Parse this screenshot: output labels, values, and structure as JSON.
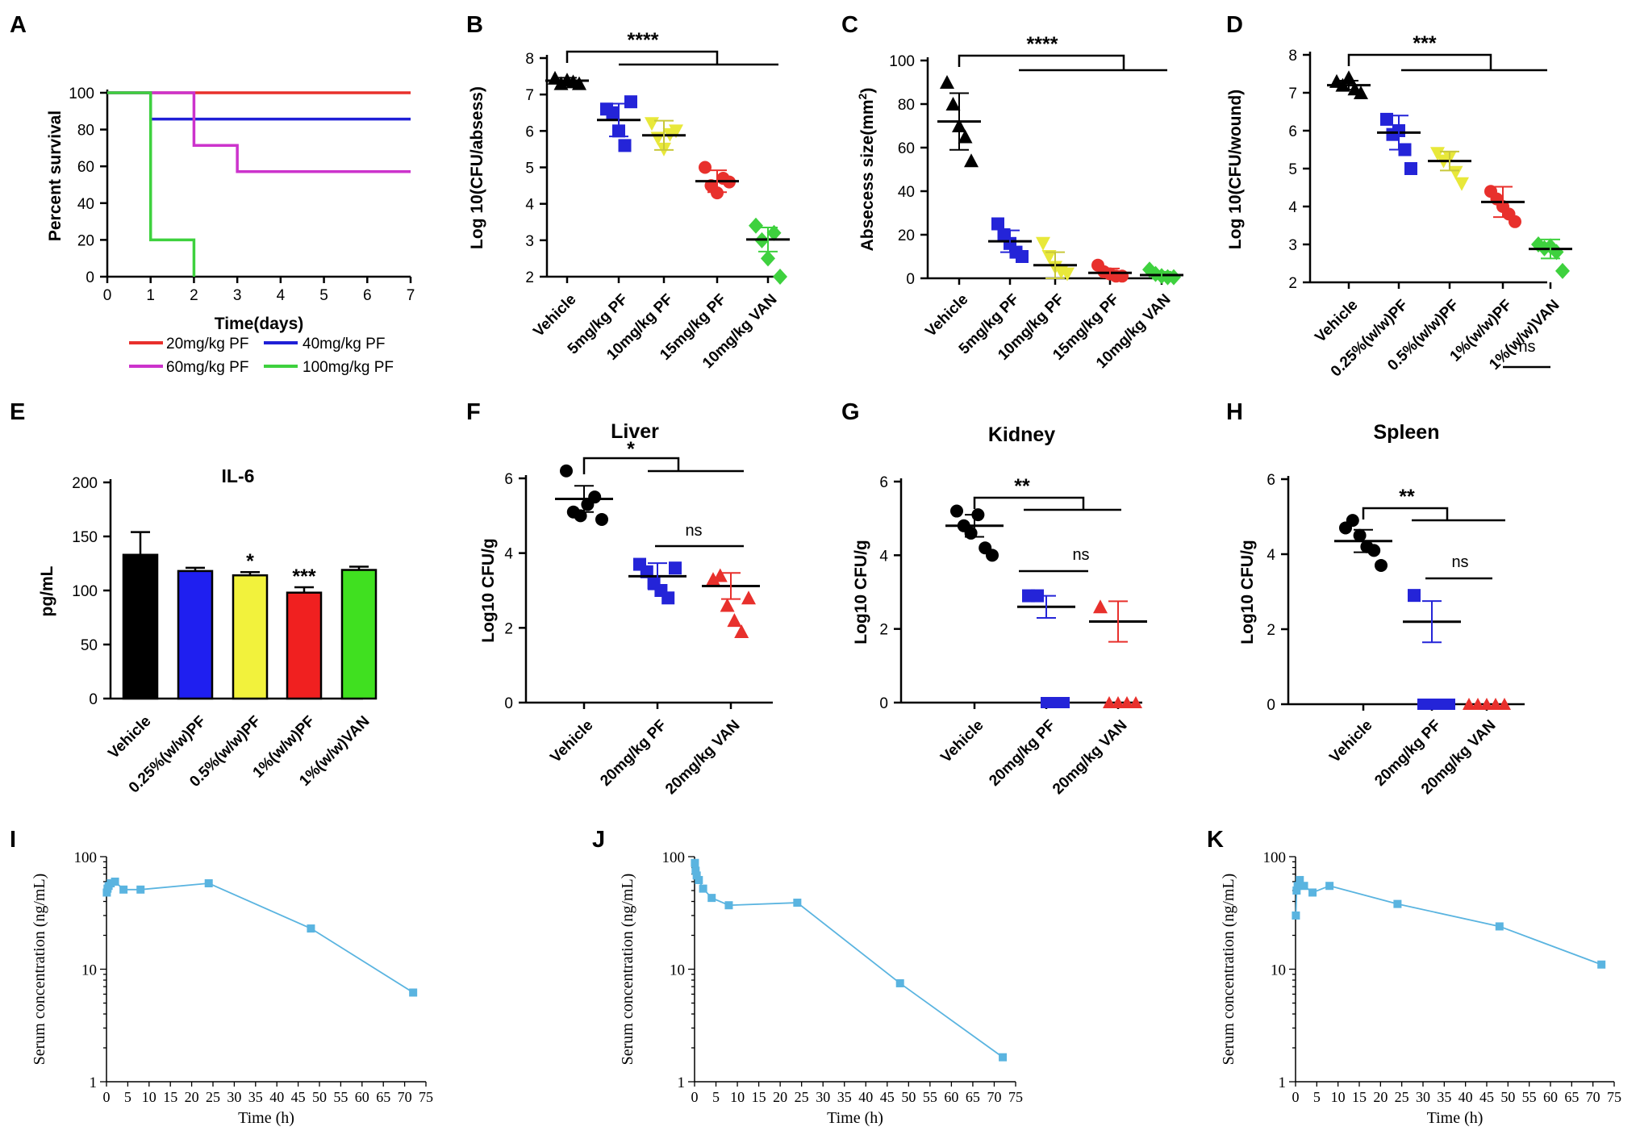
{
  "chart_data": [
    {
      "panel": "A",
      "type": "line",
      "xlabel": "Time(days)",
      "ylabel": "Percent survival",
      "xticks": [
        0,
        1,
        2,
        3,
        4,
        5,
        6,
        7
      ],
      "yticks": [
        0,
        20,
        40,
        60,
        80,
        100
      ],
      "xlim": [
        0,
        7
      ],
      "ylim": [
        0,
        100
      ],
      "series": [
        {
          "name": "20mg/kg PF",
          "color": "#e8302c",
          "steps": [
            [
              0,
              100
            ],
            [
              7,
              100
            ]
          ]
        },
        {
          "name": "40mg/kg PF",
          "color": "#1f1fd6",
          "steps": [
            [
              0,
              100
            ],
            [
              1,
              100
            ],
            [
              1,
              85.7
            ],
            [
              7,
              85.7
            ]
          ]
        },
        {
          "name": "60mg/kg PF",
          "color": "#cc33cc",
          "steps": [
            [
              0,
              100
            ],
            [
              2,
              100
            ],
            [
              2,
              71.4
            ],
            [
              3,
              71.4
            ],
            [
              3,
              57.1
            ],
            [
              7,
              57.1
            ]
          ]
        },
        {
          "name": "100mg/kg PF",
          "color": "#3ed13e",
          "steps": [
            [
              0,
              100
            ],
            [
              1,
              100
            ],
            [
              1,
              20
            ],
            [
              2,
              20
            ],
            [
              2,
              0
            ]
          ]
        }
      ]
    },
    {
      "panel": "B",
      "type": "scatter",
      "ylabel": "Log 10(CFU/absess)",
      "yticks": [
        2,
        3,
        4,
        5,
        6,
        7,
        8
      ],
      "ylim": [
        2,
        8
      ],
      "categories": [
        "Vehicle",
        "5mg/kg PF",
        "10mg/kg PF",
        "15mg/kg PF",
        "10mg/kg VAN"
      ],
      "colors": [
        "#000000",
        "#2424d8",
        "#e8e83a",
        "#e8302c",
        "#3ed13e"
      ],
      "markers": [
        "triangle",
        "square",
        "triangle-down",
        "circle",
        "diamond"
      ],
      "groups": [
        [
          7.45,
          7.3,
          7.4,
          7.35,
          7.3
        ],
        [
          6.6,
          6.5,
          6.0,
          5.6,
          6.8
        ],
        [
          6.2,
          5.8,
          5.5,
          5.9,
          6.0
        ],
        [
          5.0,
          4.5,
          4.3,
          4.7,
          4.6
        ],
        [
          3.4,
          3.0,
          2.5,
          3.2,
          2.0
        ]
      ],
      "mean": [
        7.38,
        6.3,
        5.88,
        4.62,
        3.02
      ],
      "sd": [
        0.08,
        0.45,
        0.4,
        0.3,
        0.33
      ],
      "annotations": [
        {
          "text": "****"
        }
      ]
    },
    {
      "panel": "C",
      "type": "scatter",
      "ylabel": "Absecess size(mm²)",
      "yticks": [
        0,
        20,
        40,
        60,
        80,
        100
      ],
      "ylim": [
        0,
        100
      ],
      "categories": [
        "Vehicle",
        "5mg/kg PF",
        "10mg/kg PF",
        "15mg/kg PF",
        "10mg/kg VAN"
      ],
      "colors": [
        "#000000",
        "#2424d8",
        "#e8e83a",
        "#e8302c",
        "#3ed13e"
      ],
      "markers": [
        "triangle",
        "square",
        "triangle-down",
        "circle",
        "diamond"
      ],
      "groups": [
        [
          90,
          80,
          70,
          65,
          54
        ],
        [
          25,
          20,
          16,
          12,
          10
        ],
        [
          16,
          10,
          5,
          3,
          2
        ],
        [
          6,
          3,
          2,
          1,
          1
        ],
        [
          4,
          2,
          1,
          0.5,
          0.5
        ]
      ],
      "mean": [
        72,
        17,
        6,
        2.5,
        1.5
      ],
      "sd": [
        13,
        5,
        6,
        2,
        1.5
      ],
      "annotations": [
        {
          "text": "****"
        }
      ]
    },
    {
      "panel": "D",
      "type": "scatter",
      "ylabel": "Log 10(CFU/wound)",
      "yticks": [
        2,
        3,
        4,
        5,
        6,
        7,
        8
      ],
      "ylim": [
        2,
        8
      ],
      "categories": [
        "Vehicle",
        "0.25%(w/w)PF",
        "0.5%(w/w)PF",
        "1%(w/w)PF",
        "1%(w/w)VAN"
      ],
      "colors": [
        "#000000",
        "#2424d8",
        "#e8e83a",
        "#e8302c",
        "#3ed13e"
      ],
      "markers": [
        "triangle",
        "square",
        "triangle-down",
        "circle",
        "diamond"
      ],
      "groups": [
        [
          7.3,
          7.2,
          7.4,
          7.1,
          7.0
        ],
        [
          6.3,
          5.9,
          6.0,
          5.5,
          5.0
        ],
        [
          5.4,
          5.2,
          5.3,
          4.9,
          4.6
        ],
        [
          4.4,
          4.2,
          4.0,
          3.8,
          3.6
        ],
        [
          3.0,
          2.9,
          2.95,
          2.8,
          2.3
        ]
      ],
      "mean": [
        7.2,
        5.95,
        5.2,
        4.12,
        2.88
      ],
      "sd": [
        0.12,
        0.45,
        0.25,
        0.4,
        0.25
      ],
      "annotations": [
        {
          "text": "***"
        },
        {
          "text": "ns"
        }
      ]
    },
    {
      "panel": "E",
      "type": "bar",
      "title": "IL-6",
      "ylabel": "pg/mL",
      "yticks": [
        0,
        50,
        100,
        150,
        200
      ],
      "ylim": [
        0,
        200
      ],
      "categories": [
        "Vehicle",
        "0.25%(w/w)PF",
        "0.5%(w/w)PF",
        "1%(w/w)PF",
        "1%(w/w)VAN"
      ],
      "colors": [
        "#000000",
        "#1f1ff0",
        "#f2f23c",
        "#f02020",
        "#40e020"
      ],
      "values": [
        133,
        118,
        114,
        98,
        119
      ],
      "errors": [
        21,
        3,
        3,
        5,
        3
      ],
      "annotations": [
        {
          "text": "*"
        },
        {
          "text": "***"
        }
      ]
    },
    {
      "panel": "F",
      "type": "scatter",
      "title": "Liver",
      "ylabel": "Log10 CFU/g",
      "yticks": [
        0,
        2,
        4,
        6
      ],
      "ylim": [
        0,
        6
      ],
      "categories": [
        "Vehicle",
        "20mg/kg PF",
        "20mg/kg VAN"
      ],
      "colors": [
        "#000000",
        "#2424d8",
        "#e8302c"
      ],
      "markers": [
        "circle",
        "square",
        "triangle"
      ],
      "groups": [
        [
          6.2,
          5.1,
          5.0,
          5.3,
          5.5,
          4.9
        ],
        [
          3.7,
          3.5,
          3.2,
          3.0,
          2.8,
          3.6
        ],
        [
          3.3,
          3.4,
          2.6,
          2.2,
          1.9,
          2.8
        ]
      ],
      "mean": [
        5.45,
        3.38,
        3.12
      ],
      "sd": [
        0.35,
        0.35,
        0.35
      ],
      "annotations": [
        {
          "text": "*"
        },
        {
          "text": "ns"
        }
      ]
    },
    {
      "panel": "G",
      "type": "scatter",
      "title": "Kidney",
      "ylabel": "Log10 CFU/g",
      "yticks": [
        0,
        2,
        4,
        6
      ],
      "ylim": [
        0,
        6
      ],
      "categories": [
        "Vehicle",
        "20mg/kg PF",
        "20mg/kg VAN"
      ],
      "colors": [
        "#000000",
        "#2424d8",
        "#e8302c"
      ],
      "markers": [
        "circle",
        "square",
        "triangle"
      ],
      "groups": [
        [
          5.2,
          4.8,
          4.6,
          5.1,
          4.2,
          4.0
        ],
        [
          2.9,
          2.9,
          0,
          0,
          0
        ],
        [
          2.6,
          0,
          0,
          0,
          0
        ]
      ],
      "mean": [
        4.8,
        2.6,
        2.2
      ],
      "sd": [
        0.3,
        0.3,
        0.55
      ],
      "annotations": [
        {
          "text": "**"
        },
        {
          "text": "ns"
        }
      ]
    },
    {
      "panel": "H",
      "type": "scatter",
      "title": "Spleen",
      "ylabel": "Log10 CFU/g",
      "yticks": [
        0,
        2,
        4,
        6
      ],
      "ylim": [
        0,
        6
      ],
      "categories": [
        "Vehicle",
        "20mg/kg PF",
        "20mg/kg VAN"
      ],
      "colors": [
        "#000000",
        "#2424d8",
        "#e8302c"
      ],
      "markers": [
        "circle",
        "square",
        "triangle"
      ],
      "groups": [
        [
          4.7,
          4.9,
          4.5,
          4.2,
          4.1,
          3.7
        ],
        [
          2.9,
          0,
          0,
          0,
          0
        ],
        [
          0,
          0,
          0,
          0,
          0
        ]
      ],
      "mean": [
        4.35,
        2.2,
        0
      ],
      "sd": [
        0.3,
        0.55,
        0
      ],
      "annotations": [
        {
          "text": "**"
        },
        {
          "text": "ns"
        }
      ]
    },
    {
      "panel": "I",
      "type": "line",
      "xlabel": "Time (h)",
      "ylabel": "Serum concentration (ng/mL)",
      "scale": "log",
      "color": "#5ab4e0",
      "xticks": [
        0,
        5,
        10,
        15,
        20,
        25,
        30,
        35,
        40,
        45,
        50,
        55,
        60,
        65,
        70,
        75
      ],
      "yticks": [
        1,
        10,
        100
      ],
      "xlim": [
        0,
        75
      ],
      "ylim": [
        1,
        100
      ],
      "x": [
        0.08,
        0.25,
        0.5,
        1,
        2,
        4,
        8,
        24,
        48,
        72
      ],
      "y": [
        48,
        52,
        55,
        58,
        60,
        51,
        51,
        58,
        23,
        6.2
      ]
    },
    {
      "panel": "J",
      "type": "line",
      "xlabel": "Time (h)",
      "ylabel": "Serum concentration (ng/mL)",
      "scale": "log",
      "color": "#5ab4e0",
      "xticks": [
        0,
        5,
        10,
        15,
        20,
        25,
        30,
        35,
        40,
        45,
        50,
        55,
        60,
        65,
        70,
        75
      ],
      "yticks": [
        1,
        10,
        100
      ],
      "xlim": [
        0,
        75
      ],
      "ylim": [
        1,
        100
      ],
      "x": [
        0.08,
        0.25,
        0.5,
        1,
        2,
        4,
        8,
        24,
        48,
        72
      ],
      "y": [
        88,
        75,
        68,
        62,
        52,
        43,
        37,
        39,
        7.5,
        1.65
      ]
    },
    {
      "panel": "K",
      "type": "line",
      "xlabel": "Time (h)",
      "ylabel": "Serum concentration (ng/mL)",
      "scale": "log",
      "color": "#5ab4e0",
      "xticks": [
        0,
        5,
        10,
        15,
        20,
        25,
        30,
        35,
        40,
        45,
        50,
        55,
        60,
        65,
        70,
        75
      ],
      "yticks": [
        1,
        10,
        100
      ],
      "xlim": [
        0,
        75
      ],
      "ylim": [
        1,
        100
      ],
      "x": [
        0.08,
        0.25,
        0.5,
        1,
        2,
        4,
        8,
        24,
        48,
        72
      ],
      "y": [
        30,
        50,
        55,
        62,
        55,
        48,
        55,
        38,
        24,
        11
      ]
    }
  ]
}
